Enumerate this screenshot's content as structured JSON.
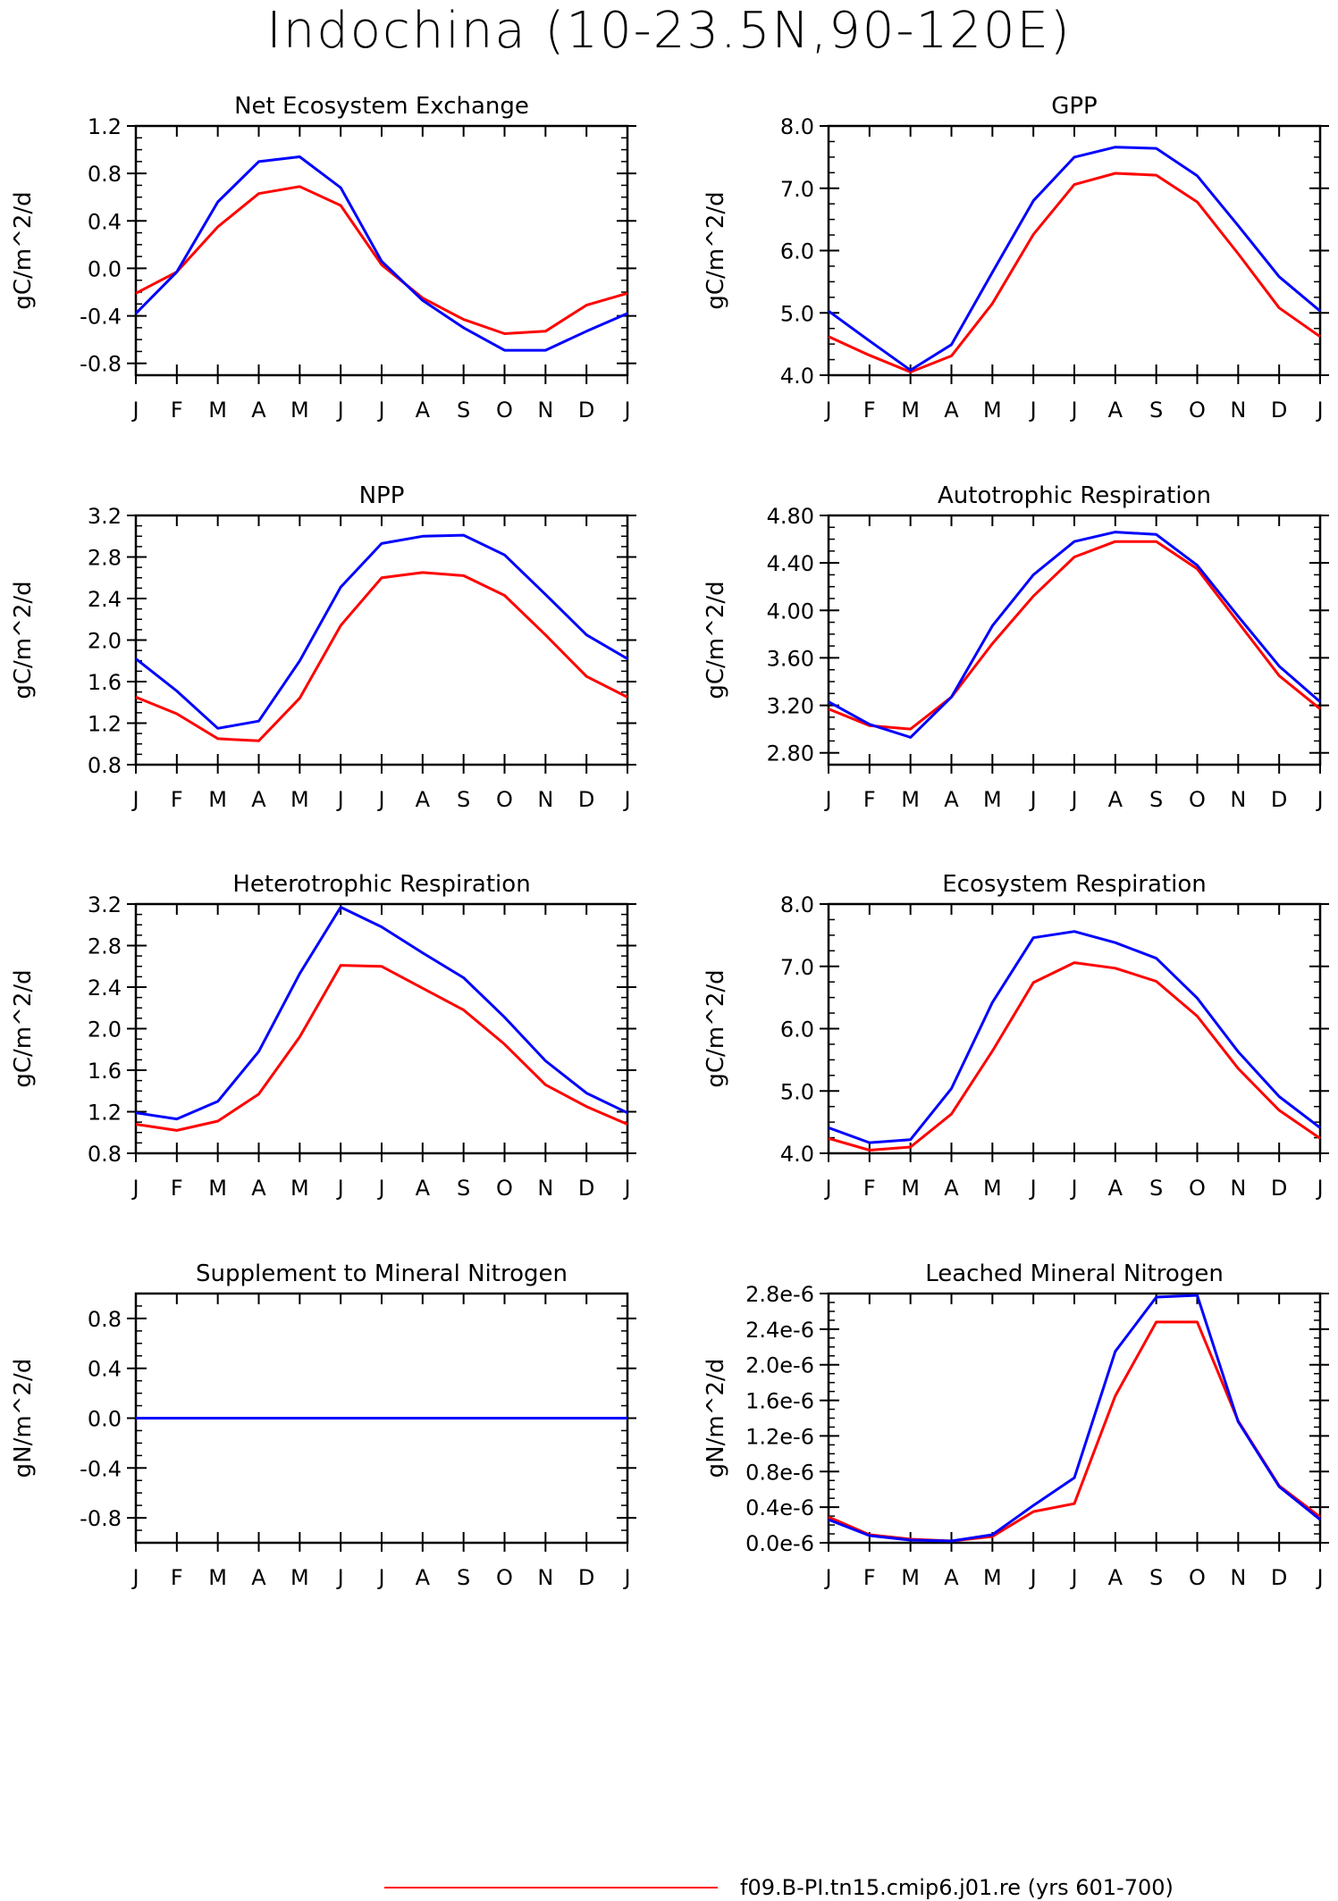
{
  "page_title": "Indochina (10-23.5N,90-120E)",
  "legend": {
    "entries": [
      {
        "label": "f09.B-PI.tn15.cmip6.j01.re (yrs 601-700)",
        "color": "#ff0000"
      }
    ]
  },
  "colors": {
    "series_a": "#ff0000",
    "series_b": "#0000ff"
  },
  "chart_data": [
    {
      "type": "line",
      "title": "Net Ecosystem Exchange",
      "ylabel": "gC/m^2/d",
      "x": [
        "J",
        "F",
        "M",
        "A",
        "M",
        "J",
        "J",
        "A",
        "S",
        "O",
        "N",
        "D",
        "J"
      ],
      "ylim": [
        -0.9,
        1.2
      ],
      "yticks": [
        -0.8,
        -0.4,
        0.0,
        0.4,
        0.8,
        1.2
      ],
      "ytick_labels": [
        "-0.8",
        "-0.4",
        "0.0",
        "0.4",
        "0.8",
        "1.2"
      ],
      "series": [
        {
          "color": "#ff0000",
          "values": [
            -0.21,
            -0.03,
            0.35,
            0.63,
            0.69,
            0.53,
            0.03,
            -0.25,
            -0.43,
            -0.55,
            -0.53,
            -0.31,
            -0.21
          ]
        },
        {
          "color": "#0000ff",
          "values": [
            -0.38,
            -0.03,
            0.56,
            0.9,
            0.94,
            0.68,
            0.06,
            -0.27,
            -0.5,
            -0.69,
            -0.69,
            -0.53,
            -0.38
          ]
        }
      ]
    },
    {
      "type": "line",
      "title": "GPP",
      "ylabel": "gC/m^2/d",
      "x": [
        "J",
        "F",
        "M",
        "A",
        "M",
        "J",
        "J",
        "A",
        "S",
        "O",
        "N",
        "D",
        "J"
      ],
      "ylim": [
        4.0,
        8.0
      ],
      "yticks": [
        4.0,
        5.0,
        6.0,
        7.0,
        8.0
      ],
      "ytick_labels": [
        "4.0",
        "5.0",
        "6.0",
        "7.0",
        "8.0"
      ],
      "series": [
        {
          "color": "#ff0000",
          "values": [
            4.62,
            4.32,
            4.05,
            4.31,
            5.15,
            6.26,
            7.06,
            7.24,
            7.21,
            6.78,
            5.95,
            5.08,
            4.62
          ]
        },
        {
          "color": "#0000ff",
          "values": [
            5.03,
            4.55,
            4.08,
            4.49,
            5.65,
            6.8,
            7.5,
            7.66,
            7.64,
            7.2,
            6.4,
            5.58,
            5.03
          ]
        }
      ]
    },
    {
      "type": "line",
      "title": "NPP",
      "ylabel": "gC/m^2/d",
      "x": [
        "J",
        "F",
        "M",
        "A",
        "M",
        "J",
        "J",
        "A",
        "S",
        "O",
        "N",
        "D",
        "J"
      ],
      "ylim": [
        0.8,
        3.2
      ],
      "yticks": [
        0.8,
        1.2,
        1.6,
        2.0,
        2.4,
        2.8,
        3.2
      ],
      "ytick_labels": [
        "0.8",
        "1.2",
        "1.6",
        "2.0",
        "2.4",
        "2.8",
        "3.2"
      ],
      "series": [
        {
          "color": "#ff0000",
          "values": [
            1.45,
            1.29,
            1.05,
            1.03,
            1.44,
            2.14,
            2.6,
            2.65,
            2.62,
            2.43,
            2.05,
            1.65,
            1.45
          ]
        },
        {
          "color": "#0000ff",
          "values": [
            1.82,
            1.51,
            1.15,
            1.22,
            1.8,
            2.51,
            2.93,
            3.0,
            3.01,
            2.82,
            2.44,
            2.05,
            1.82
          ]
        }
      ]
    },
    {
      "type": "line",
      "title": "Autotrophic Respiration",
      "ylabel": "gC/m^2/d",
      "x": [
        "J",
        "F",
        "M",
        "A",
        "M",
        "J",
        "J",
        "A",
        "S",
        "O",
        "N",
        "D",
        "J"
      ],
      "ylim": [
        2.7,
        4.8
      ],
      "yticks": [
        2.8,
        3.2,
        3.6,
        4.0,
        4.4,
        4.8
      ],
      "ytick_labels": [
        "2.80",
        "3.20",
        "3.60",
        "4.00",
        "4.40",
        "4.80"
      ],
      "series": [
        {
          "color": "#ff0000",
          "values": [
            3.17,
            3.03,
            3.0,
            3.27,
            3.72,
            4.12,
            4.45,
            4.58,
            4.58,
            4.35,
            3.9,
            3.45,
            3.17
          ]
        },
        {
          "color": "#0000ff",
          "values": [
            3.23,
            3.04,
            2.93,
            3.27,
            3.87,
            4.3,
            4.58,
            4.66,
            4.64,
            4.38,
            3.95,
            3.53,
            3.23
          ]
        }
      ]
    },
    {
      "type": "line",
      "title": "Heterotrophic Respiration",
      "ylabel": "gC/m^2/d",
      "x": [
        "J",
        "F",
        "M",
        "A",
        "M",
        "J",
        "J",
        "A",
        "S",
        "O",
        "N",
        "D",
        "J"
      ],
      "ylim": [
        0.8,
        3.2
      ],
      "yticks": [
        0.8,
        1.2,
        1.6,
        2.0,
        2.4,
        2.8,
        3.2
      ],
      "ytick_labels": [
        "0.8",
        "1.2",
        "1.6",
        "2.0",
        "2.4",
        "2.8",
        "3.2"
      ],
      "series": [
        {
          "color": "#ff0000",
          "values": [
            1.08,
            1.02,
            1.11,
            1.37,
            1.92,
            2.61,
            2.6,
            2.39,
            2.18,
            1.85,
            1.46,
            1.25,
            1.08
          ]
        },
        {
          "color": "#0000ff",
          "values": [
            1.19,
            1.13,
            1.3,
            1.78,
            2.53,
            3.17,
            2.98,
            2.73,
            2.49,
            2.11,
            1.69,
            1.38,
            1.19
          ]
        }
      ]
    },
    {
      "type": "line",
      "title": "Ecosystem Respiration",
      "ylabel": "gC/m^2/d",
      "x": [
        "J",
        "F",
        "M",
        "A",
        "M",
        "J",
        "J",
        "A",
        "S",
        "O",
        "N",
        "D",
        "J"
      ],
      "ylim": [
        4.0,
        8.0
      ],
      "yticks": [
        4.0,
        5.0,
        6.0,
        7.0,
        8.0
      ],
      "ytick_labels": [
        "4.0",
        "5.0",
        "6.0",
        "7.0",
        "8.0"
      ],
      "series": [
        {
          "color": "#ff0000",
          "values": [
            4.24,
            4.05,
            4.1,
            4.63,
            5.64,
            6.74,
            7.06,
            6.97,
            6.76,
            6.2,
            5.36,
            4.69,
            4.24
          ]
        },
        {
          "color": "#0000ff",
          "values": [
            4.41,
            4.17,
            4.22,
            5.04,
            6.42,
            7.46,
            7.56,
            7.38,
            7.13,
            6.49,
            5.63,
            4.91,
            4.41
          ]
        }
      ]
    },
    {
      "type": "line",
      "title": "Supplement to Mineral Nitrogen",
      "ylabel": "gN/m^2/d",
      "x": [
        "J",
        "F",
        "M",
        "A",
        "M",
        "J",
        "J",
        "A",
        "S",
        "O",
        "N",
        "D",
        "J"
      ],
      "ylim": [
        -1.0,
        1.0
      ],
      "yticks": [
        -0.8,
        -0.4,
        0.0,
        0.4,
        0.8
      ],
      "ytick_labels": [
        "-0.8",
        "-0.4",
        "0.0",
        "0.4",
        "0.8"
      ],
      "series": [
        {
          "color": "#ff0000",
          "values": [
            0,
            0,
            0,
            0,
            0,
            0,
            0,
            0,
            0,
            0,
            0,
            0,
            0
          ]
        },
        {
          "color": "#0000ff",
          "values": [
            0,
            0,
            0,
            0,
            0,
            0,
            0,
            0,
            0,
            0,
            0,
            0,
            0
          ]
        }
      ]
    },
    {
      "type": "line",
      "title": "Leached Mineral Nitrogen",
      "ylabel": "gN/m^2/d",
      "x": [
        "J",
        "F",
        "M",
        "A",
        "M",
        "J",
        "J",
        "A",
        "S",
        "O",
        "N",
        "D",
        "J"
      ],
      "ylim": [
        0.0,
        2.8e-06
      ],
      "yticks": [
        0.0,
        4e-07,
        8e-07,
        1.2e-06,
        1.6e-06,
        2e-06,
        2.4e-06,
        2.8e-06
      ],
      "ytick_labels": [
        "0.0e-6",
        "0.4e-6",
        "0.8e-6",
        "1.2e-6",
        "1.6e-6",
        "2.0e-6",
        "2.4e-6",
        "2.8e-6"
      ],
      "series": [
        {
          "color": "#ff0000",
          "values": [
            2.9e-07,
            9e-08,
            4e-08,
            2e-08,
            7e-08,
            3.5e-07,
            4.4e-07,
            1.65e-06,
            2.48e-06,
            2.48e-06,
            1.37e-06,
            6.4e-07,
            2.9e-07
          ]
        },
        {
          "color": "#0000ff",
          "values": [
            2.6e-07,
            8e-08,
            3e-08,
            2e-08,
            9e-08,
            4.2e-07,
            7.3e-07,
            2.15e-06,
            2.76e-06,
            2.78e-06,
            1.36e-06,
            6.3e-07,
            2.6e-07
          ]
        }
      ]
    }
  ]
}
